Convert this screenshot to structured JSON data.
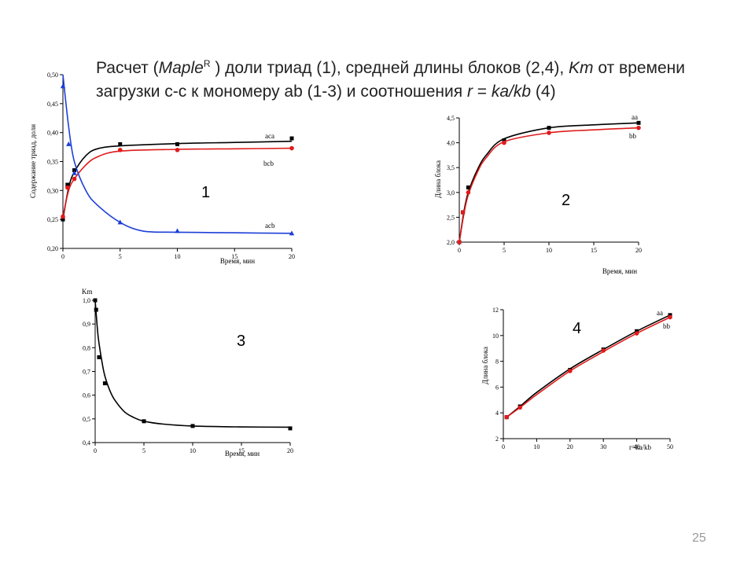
{
  "title": {
    "p1": "Расчет (",
    "maple": "Maple",
    "sup": "R",
    "p2": " ) доли триад  (1), средней длины блоков (2,4), ",
    "km": "Km",
    "p3": " от времени загрузки  с-с  к  мономеру  ab  (1-3) и соотношения  ",
    "r": "r",
    "p4": " = ",
    "kakb": "ka/kb",
    "p5": "  (4)"
  },
  "page_number": "25",
  "colors": {
    "black": "#000000",
    "red": "#e01b1b",
    "blue": "#1d3fd8"
  },
  "chart_data": [
    {
      "id": "1",
      "type": "line",
      "panel_label": "1",
      "xlabel": "Время, мин",
      "ylabel": "Содержание триад, доли",
      "xlim": [
        0,
        20
      ],
      "ylim": [
        0.2,
        0.5
      ],
      "xticks": [
        "0",
        "5",
        "10",
        "15",
        "20"
      ],
      "yticks": [
        "0,20",
        "0,25",
        "0,30",
        "0,35",
        "0,40",
        "0,45",
        "0,50"
      ],
      "series": [
        {
          "name": "aca",
          "color": "#000000",
          "marker": "square",
          "points": [
            [
              0,
              0.25
            ],
            [
              0.4,
              0.31
            ],
            [
              1,
              0.335
            ],
            [
              5,
              0.38
            ],
            [
              10,
              0.38
            ],
            [
              20,
              0.39
            ]
          ],
          "curve": [
            [
              0,
              0.25
            ],
            [
              0.5,
              0.305
            ],
            [
              1,
              0.332
            ],
            [
              2,
              0.36
            ],
            [
              3,
              0.372
            ],
            [
              5,
              0.377
            ],
            [
              10,
              0.381
            ],
            [
              15,
              0.383
            ],
            [
              20,
              0.385
            ]
          ]
        },
        {
          "name": "bcb",
          "color": "#e01b1b",
          "marker": "circle",
          "points": [
            [
              0,
              0.255
            ],
            [
              0.4,
              0.305
            ],
            [
              1,
              0.32
            ],
            [
              5,
              0.37
            ],
            [
              10,
              0.37
            ],
            [
              20,
              0.373
            ]
          ],
          "curve": [
            [
              0,
              0.255
            ],
            [
              0.5,
              0.3
            ],
            [
              1,
              0.32
            ],
            [
              2,
              0.344
            ],
            [
              3,
              0.358
            ],
            [
              5,
              0.368
            ],
            [
              10,
              0.371
            ],
            [
              15,
              0.372
            ],
            [
              20,
              0.373
            ]
          ]
        },
        {
          "name": "acb",
          "color": "#1d3fd8",
          "marker": "triangle",
          "points": [
            [
              0,
              0.48
            ],
            [
              0.5,
              0.38
            ],
            [
              1,
              0.33
            ],
            [
              5,
              0.245
            ],
            [
              10,
              0.23
            ],
            [
              20,
              0.226
            ]
          ],
          "curve": [
            [
              0,
              0.5
            ],
            [
              0.5,
              0.41
            ],
            [
              1,
              0.35
            ],
            [
              2,
              0.3
            ],
            [
              3,
              0.275
            ],
            [
              5,
              0.245
            ],
            [
              7,
              0.23
            ],
            [
              10,
              0.228
            ],
            [
              15,
              0.227
            ],
            [
              20,
              0.226
            ]
          ]
        }
      ]
    },
    {
      "id": "2",
      "type": "line",
      "panel_label": "2",
      "xlabel": "Время, мин",
      "ylabel": "Длина блока",
      "xlim": [
        0,
        20
      ],
      "ylim": [
        2.0,
        4.5
      ],
      "xticks": [
        "0",
        "5",
        "10",
        "15",
        "20"
      ],
      "yticks": [
        "2,0",
        "2,5",
        "3,0",
        "3,5",
        "4,0",
        "4,5"
      ],
      "series": [
        {
          "name": "aa",
          "color": "#000000",
          "marker": "square",
          "points": [
            [
              0,
              2.0
            ],
            [
              0.4,
              2.6
            ],
            [
              1,
              3.1
            ],
            [
              5,
              4.05
            ],
            [
              10,
              4.3
            ],
            [
              20,
              4.4
            ]
          ],
          "curve": [
            [
              0,
              2.0
            ],
            [
              0.5,
              2.6
            ],
            [
              1,
              3.0
            ],
            [
              2,
              3.45
            ],
            [
              3,
              3.75
            ],
            [
              5,
              4.08
            ],
            [
              10,
              4.3
            ],
            [
              15,
              4.36
            ],
            [
              20,
              4.4
            ]
          ]
        },
        {
          "name": "bb",
          "color": "#e01b1b",
          "marker": "circle",
          "points": [
            [
              0,
              2.0
            ],
            [
              0.4,
              2.6
            ],
            [
              1,
              3.0
            ],
            [
              5,
              4.0
            ],
            [
              10,
              4.2
            ],
            [
              20,
              4.3
            ]
          ],
          "curve": [
            [
              0,
              2.0
            ],
            [
              0.5,
              2.55
            ],
            [
              1,
              2.95
            ],
            [
              2,
              3.4
            ],
            [
              3,
              3.7
            ],
            [
              5,
              4.02
            ],
            [
              10,
              4.2
            ],
            [
              15,
              4.26
            ],
            [
              20,
              4.3
            ]
          ]
        }
      ]
    },
    {
      "id": "3",
      "type": "line",
      "panel_label": "3",
      "xlabel": "Время, мин",
      "ylabel": "Km",
      "xlim": [
        0,
        20
      ],
      "ylim": [
        0.4,
        1.0
      ],
      "xticks": [
        "0",
        "5",
        "10",
        "15",
        "20"
      ],
      "yticks": [
        "0,4",
        "0,5",
        "0,6",
        "0,7",
        "0,8",
        "0,9",
        "1,0"
      ],
      "series": [
        {
          "name": "",
          "color": "#000000",
          "marker": "square",
          "points": [
            [
              0,
              1.0
            ],
            [
              0.1,
              0.96
            ],
            [
              0.4,
              0.76
            ],
            [
              1,
              0.65
            ],
            [
              5,
              0.49
            ],
            [
              10,
              0.47
            ],
            [
              20,
              0.46
            ]
          ],
          "curve": [
            [
              0,
              1.0
            ],
            [
              0.3,
              0.85
            ],
            [
              0.7,
              0.74
            ],
            [
              1,
              0.68
            ],
            [
              1.5,
              0.62
            ],
            [
              2,
              0.58
            ],
            [
              3,
              0.53
            ],
            [
              4,
              0.505
            ],
            [
              5,
              0.49
            ],
            [
              7,
              0.478
            ],
            [
              10,
              0.47
            ],
            [
              15,
              0.466
            ],
            [
              20,
              0.465
            ]
          ]
        }
      ]
    },
    {
      "id": "4",
      "type": "line",
      "panel_label": "4",
      "xlabel": "r=ka/kb",
      "ylabel": "Длина блока",
      "xlim": [
        0,
        50
      ],
      "ylim": [
        0,
        12
      ],
      "xticks": [
        "0",
        "10",
        "20",
        "30",
        "40",
        "50"
      ],
      "yticks": [
        "2",
        "4",
        "6",
        "8",
        "10",
        "12"
      ],
      "series": [
        {
          "name": "aa",
          "color": "#000000",
          "marker": "square",
          "points": [
            [
              1,
              2.0
            ],
            [
              5,
              3.0
            ],
            [
              20,
              6.4
            ],
            [
              30,
              8.3
            ],
            [
              40,
              10.0
            ],
            [
              50,
              11.5
            ]
          ],
          "curve": [
            [
              1,
              2.0
            ],
            [
              5,
              3.0
            ],
            [
              10,
              4.3
            ],
            [
              20,
              6.5
            ],
            [
              30,
              8.3
            ],
            [
              40,
              10.0
            ],
            [
              50,
              11.5
            ]
          ]
        },
        {
          "name": "bb",
          "color": "#e01b1b",
          "marker": "circle",
          "points": [
            [
              1,
              2.0
            ],
            [
              5,
              2.9
            ],
            [
              20,
              6.3
            ],
            [
              30,
              8.2
            ],
            [
              40,
              9.8
            ],
            [
              50,
              11.3
            ]
          ],
          "curve": [
            [
              1,
              2.0
            ],
            [
              5,
              2.9
            ],
            [
              10,
              4.1
            ],
            [
              20,
              6.3
            ],
            [
              30,
              8.1
            ],
            [
              40,
              9.8
            ],
            [
              50,
              11.3
            ]
          ]
        }
      ]
    }
  ]
}
